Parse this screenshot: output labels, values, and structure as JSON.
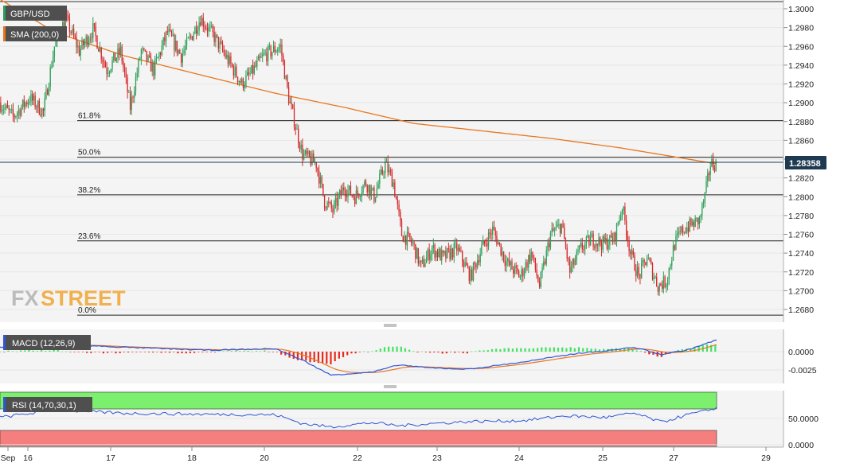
{
  "colors": {
    "background": "#ffffff",
    "panel_bg": "#f4f4f4",
    "grid": "#e6e6e6",
    "candle_up": "#2e9e58",
    "candle_down": "#d6292b",
    "sma": "#e8761e",
    "macd_line": "#2f56d8",
    "signal_line": "#e8761e",
    "hist_up": "#3fe35e",
    "hist_down": "#e8281c",
    "rsi_line": "#2f56d8",
    "rsi_overbought": "#7cf06e",
    "rsi_oversold": "#f57f7f",
    "price_tag": "#1e3a52",
    "legend_bg": "#4f4f4f",
    "watermark": "#f2a93b"
  },
  "price_panel": {
    "symbol_label": "GBP/USD",
    "sma_label": "SMA (200,0)",
    "current_price_label": "1.28358",
    "watermark_text": {
      "fx": "FX",
      "street": "STREET"
    },
    "y_ticks": [
      "1.3000",
      "1.2980",
      "1.2960",
      "1.2940",
      "1.2920",
      "1.2900",
      "1.2880",
      "1.2860",
      "1.2840",
      "1.2820",
      "1.2800",
      "1.2780",
      "1.2760",
      "1.2740",
      "1.2720",
      "1.2700",
      "1.2680"
    ],
    "fib_levels": [
      {
        "label": "61.8%",
        "value": 1.2881
      },
      {
        "label": "50.0%",
        "value": 1.2842
      },
      {
        "label": "38.2%",
        "value": 1.2802
      },
      {
        "label": "23.6%",
        "value": 1.2753
      },
      {
        "label": "0.0%",
        "value": 1.2674
      }
    ]
  },
  "macd_panel": {
    "label": "MACD (12,26,9)",
    "y_ticks": [
      "0.0000",
      "-0.0025"
    ]
  },
  "rsi_panel": {
    "label": "RSI (14,70,30,1)",
    "y_ticks": [
      "50.0000",
      "0.0000"
    ]
  },
  "x_axis": {
    "tick_labels": [
      "Sep",
      "16",
      "17",
      "18",
      "20",
      "22",
      "23",
      "24",
      "25",
      "27",
      "29"
    ]
  },
  "chart_data": [
    {
      "type": "candlestick",
      "title": "GBP/USD",
      "series": [
        {
          "name": "GBP/USD",
          "kind": "ohlc"
        },
        {
          "name": "SMA (200,0)",
          "kind": "line",
          "anchor_points": [
            [
              0,
              1.301
            ],
            [
              40,
              1.2975
            ],
            [
              90,
              1.295
            ],
            [
              150,
              1.2928
            ],
            [
              200,
              1.291
            ],
            [
              250,
              1.2895
            ],
            [
              300,
              1.2878
            ],
            [
              350,
              1.287
            ],
            [
              400,
              1.2862
            ],
            [
              450,
              1.2852
            ],
            [
              520,
              1.2835
            ]
          ]
        }
      ],
      "ylim": [
        1.267,
        1.301
      ],
      "anchor_prices": [
        [
          0,
          1.29
        ],
        [
          10,
          1.2885
        ],
        [
          22,
          1.2905
        ],
        [
          32,
          1.289
        ],
        [
          40,
          1.296
        ],
        [
          48,
          1.299
        ],
        [
          58,
          1.2955
        ],
        [
          68,
          1.2978
        ],
        [
          78,
          1.2935
        ],
        [
          88,
          1.2955
        ],
        [
          95,
          1.2895
        ],
        [
          103,
          1.2955
        ],
        [
          112,
          1.2935
        ],
        [
          122,
          1.2975
        ],
        [
          132,
          1.295
        ],
        [
          146,
          1.299
        ],
        [
          156,
          1.297
        ],
        [
          168,
          1.294
        ],
        [
          176,
          1.292
        ],
        [
          182,
          1.293
        ],
        [
          192,
          1.295
        ],
        [
          204,
          1.296
        ],
        [
          210,
          1.2905
        ],
        [
          220,
          1.2845
        ],
        [
          230,
          1.2835
        ],
        [
          236,
          1.2795
        ],
        [
          242,
          1.2785
        ],
        [
          250,
          1.281
        ],
        [
          258,
          1.28
        ],
        [
          266,
          1.2815
        ],
        [
          272,
          1.28
        ],
        [
          280,
          1.2835
        ],
        [
          286,
          1.2815
        ],
        [
          292,
          1.276
        ],
        [
          300,
          1.275
        ],
        [
          306,
          1.2725
        ],
        [
          314,
          1.2745
        ],
        [
          322,
          1.2735
        ],
        [
          332,
          1.2745
        ],
        [
          342,
          1.2715
        ],
        [
          350,
          1.2745
        ],
        [
          358,
          1.2765
        ],
        [
          368,
          1.273
        ],
        [
          378,
          1.2715
        ],
        [
          386,
          1.274
        ],
        [
          392,
          1.2705
        ],
        [
          400,
          1.276
        ],
        [
          408,
          1.277
        ],
        [
          414,
          1.272
        ],
        [
          422,
          1.2745
        ],
        [
          430,
          1.2755
        ],
        [
          438,
          1.275
        ],
        [
          446,
          1.2755
        ],
        [
          452,
          1.279
        ],
        [
          458,
          1.274
        ],
        [
          464,
          1.2715
        ],
        [
          470,
          1.2735
        ],
        [
          478,
          1.2705
        ],
        [
          484,
          1.271
        ],
        [
          490,
          1.275
        ],
        [
          496,
          1.2765
        ],
        [
          502,
          1.277
        ],
        [
          508,
          1.2775
        ],
        [
          512,
          1.28
        ],
        [
          516,
          1.2835
        ]
      ],
      "x_tick_labels": [
        "Sep",
        "16",
        "17",
        "18",
        "20",
        "22",
        "23",
        "24",
        "25",
        "27",
        "29"
      ],
      "y_tick_labels": [
        "1.3000",
        "1.2980",
        "1.2960",
        "1.2940",
        "1.2920",
        "1.2900",
        "1.2880",
        "1.2860",
        "1.2840",
        "1.2820",
        "1.2800",
        "1.2780",
        "1.2760",
        "1.2740",
        "1.2720",
        "1.2700",
        "1.2680"
      ],
      "last_value": 1.28358
    },
    {
      "type": "line",
      "title": "MACD (12,26,9)",
      "series": [
        {
          "name": "MACD (12,26,9)"
        }
      ],
      "ylim": [
        -0.004,
        0.0025
      ],
      "anchor_macd": [
        [
          0,
          0.0006
        ],
        [
          40,
          0.001
        ],
        [
          90,
          0.0006
        ],
        [
          150,
          0.0002
        ],
        [
          200,
          0.0004
        ],
        [
          220,
          -0.0012
        ],
        [
          240,
          -0.0032
        ],
        [
          270,
          -0.0028
        ],
        [
          290,
          -0.0018
        ],
        [
          310,
          -0.0022
        ],
        [
          340,
          -0.0024
        ],
        [
          380,
          -0.0014
        ],
        [
          420,
          -0.0002
        ],
        [
          440,
          0.0001
        ],
        [
          460,
          0.0006
        ],
        [
          480,
          -0.0004
        ],
        [
          500,
          0.0003
        ],
        [
          520,
          0.0016
        ]
      ],
      "y_tick_labels": [
        "0.0000",
        "-0.0025"
      ]
    },
    {
      "type": "line",
      "title": "RSI (14,70,30,1)",
      "series": [
        {
          "name": "RSI (14,70,30,1)"
        }
      ],
      "ylim": [
        0,
        100
      ],
      "levels": [
        70,
        30
      ],
      "anchor_rsi": [
        [
          0,
          52
        ],
        [
          40,
          66
        ],
        [
          90,
          60
        ],
        [
          150,
          58
        ],
        [
          200,
          57
        ],
        [
          220,
          40
        ],
        [
          240,
          34
        ],
        [
          270,
          42
        ],
        [
          290,
          36
        ],
        [
          310,
          40
        ],
        [
          340,
          44
        ],
        [
          380,
          46
        ],
        [
          410,
          55
        ],
        [
          440,
          52
        ],
        [
          460,
          60
        ],
        [
          480,
          43
        ],
        [
          500,
          58
        ],
        [
          512,
          64
        ],
        [
          520,
          71
        ]
      ],
      "y_tick_labels": [
        "50.0000",
        "0.0000"
      ]
    }
  ]
}
